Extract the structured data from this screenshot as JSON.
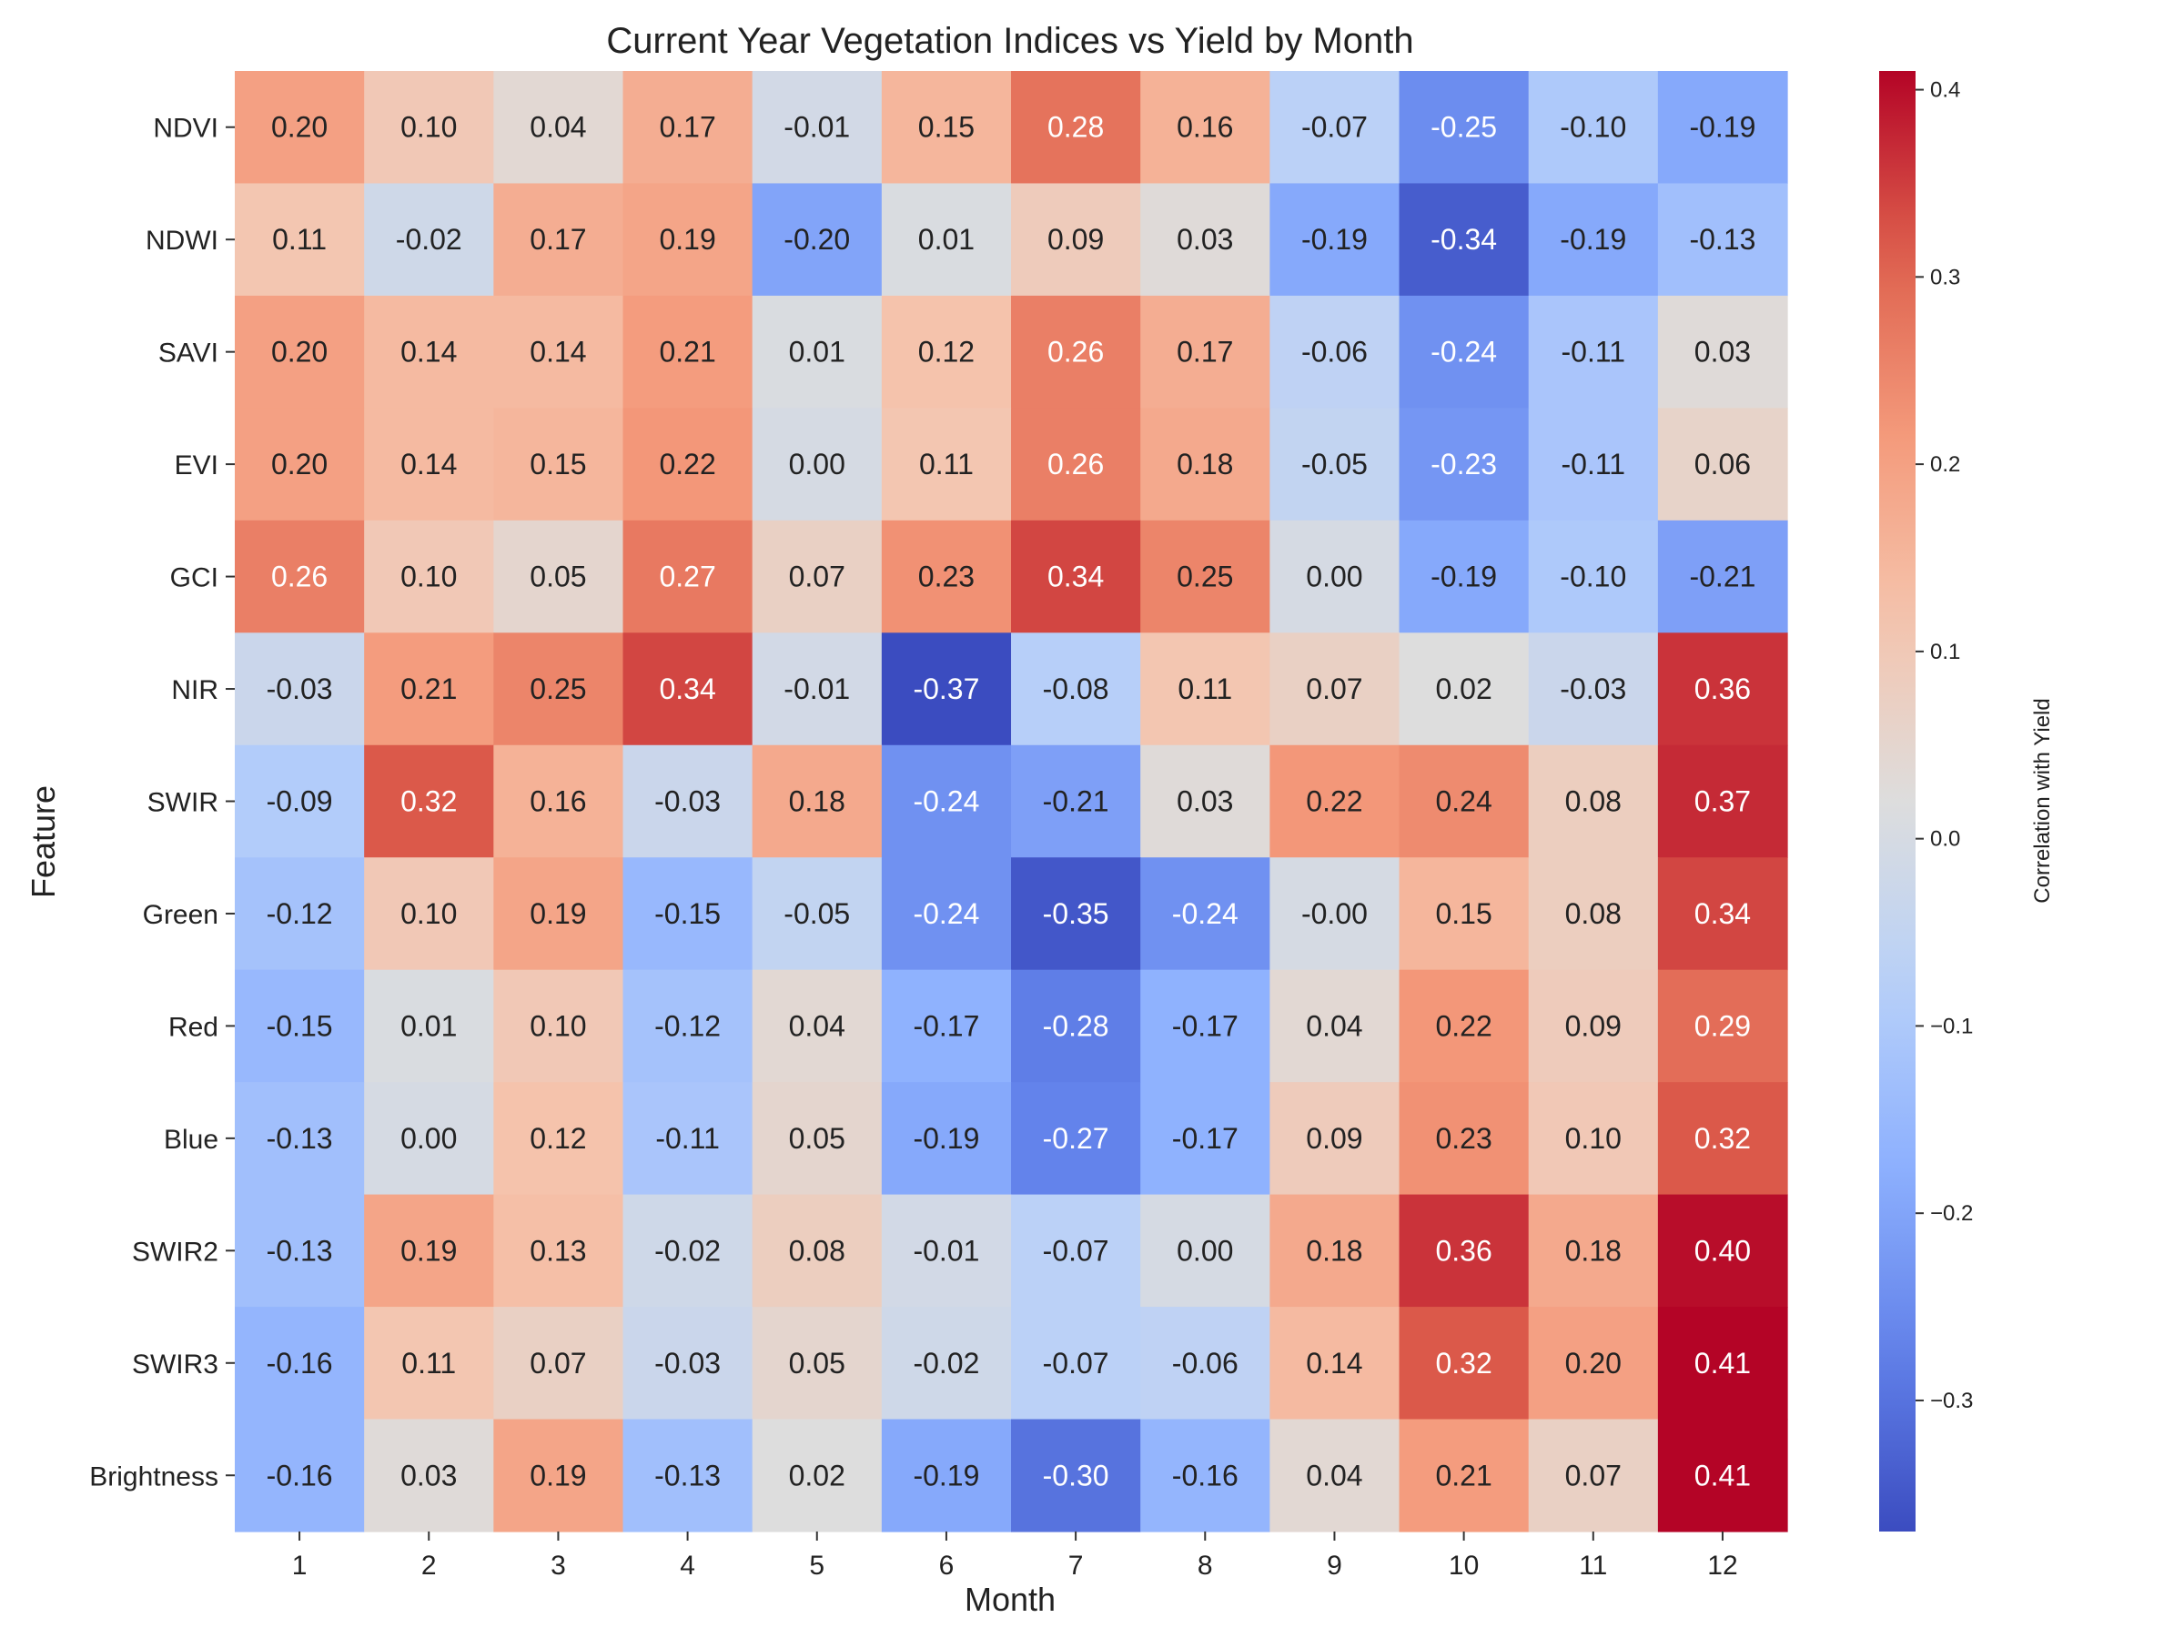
{
  "chart_data": {
    "type": "heatmap",
    "title": "Current Year Vegetation Indices vs Yield by Month",
    "xlabel": "Month",
    "ylabel": "Feature",
    "colorbar_label": "Correlation with Yield",
    "colormap": "coolwarm",
    "vmin": -0.37,
    "vmax": 0.41,
    "colorbar_ticks": [
      0.4,
      0.3,
      0.2,
      0.1,
      0.0,
      -0.1,
      -0.2,
      -0.3
    ],
    "colorbar_tick_labels": [
      "0.4",
      "0.3",
      "0.2",
      "0.1",
      "0.0",
      "−0.1",
      "−0.2",
      "−0.3"
    ],
    "x_categories": [
      "1",
      "2",
      "3",
      "4",
      "5",
      "6",
      "7",
      "8",
      "9",
      "10",
      "11",
      "12"
    ],
    "y_categories": [
      "NDVI",
      "NDWI",
      "SAVI",
      "EVI",
      "GCI",
      "NIR",
      "SWIR",
      "Green",
      "Red",
      "Blue",
      "SWIR2",
      "SWIR3",
      "Brightness"
    ],
    "values": [
      [
        "0.20",
        "0.10",
        "0.04",
        "0.17",
        "-0.01",
        "0.15",
        "0.28",
        "0.16",
        "-0.07",
        "-0.25",
        "-0.10",
        "-0.19"
      ],
      [
        "0.11",
        "-0.02",
        "0.17",
        "0.19",
        "-0.20",
        "0.01",
        "0.09",
        "0.03",
        "-0.19",
        "-0.34",
        "-0.19",
        "-0.13"
      ],
      [
        "0.20",
        "0.14",
        "0.14",
        "0.21",
        "0.01",
        "0.12",
        "0.26",
        "0.17",
        "-0.06",
        "-0.24",
        "-0.11",
        "0.03"
      ],
      [
        "0.20",
        "0.14",
        "0.15",
        "0.22",
        "0.00",
        "0.11",
        "0.26",
        "0.18",
        "-0.05",
        "-0.23",
        "-0.11",
        "0.06"
      ],
      [
        "0.26",
        "0.10",
        "0.05",
        "0.27",
        "0.07",
        "0.23",
        "0.34",
        "0.25",
        "0.00",
        "-0.19",
        "-0.10",
        "-0.21"
      ],
      [
        "-0.03",
        "0.21",
        "0.25",
        "0.34",
        "-0.01",
        "-0.37",
        "-0.08",
        "0.11",
        "0.07",
        "0.02",
        "-0.03",
        "0.36"
      ],
      [
        "-0.09",
        "0.32",
        "0.16",
        "-0.03",
        "0.18",
        "-0.24",
        "-0.21",
        "0.03",
        "0.22",
        "0.24",
        "0.08",
        "0.37"
      ],
      [
        "-0.12",
        "0.10",
        "0.19",
        "-0.15",
        "-0.05",
        "-0.24",
        "-0.35",
        "-0.24",
        "-0.00",
        "0.15",
        "0.08",
        "0.34"
      ],
      [
        "-0.15",
        "0.01",
        "0.10",
        "-0.12",
        "0.04",
        "-0.17",
        "-0.28",
        "-0.17",
        "0.04",
        "0.22",
        "0.09",
        "0.29"
      ],
      [
        "-0.13",
        "0.00",
        "0.12",
        "-0.11",
        "0.05",
        "-0.19",
        "-0.27",
        "-0.17",
        "0.09",
        "0.23",
        "0.10",
        "0.32"
      ],
      [
        "-0.13",
        "0.19",
        "0.13",
        "-0.02",
        "0.08",
        "-0.01",
        "-0.07",
        "0.00",
        "0.18",
        "0.36",
        "0.18",
        "0.40"
      ],
      [
        "-0.16",
        "0.11",
        "0.07",
        "-0.03",
        "0.05",
        "-0.02",
        "-0.07",
        "-0.06",
        "0.14",
        "0.32",
        "0.20",
        "0.41"
      ],
      [
        "-0.16",
        "0.03",
        "0.19",
        "-0.13",
        "0.02",
        "-0.19",
        "-0.30",
        "-0.16",
        "0.04",
        "0.21",
        "0.07",
        "0.41"
      ]
    ]
  }
}
